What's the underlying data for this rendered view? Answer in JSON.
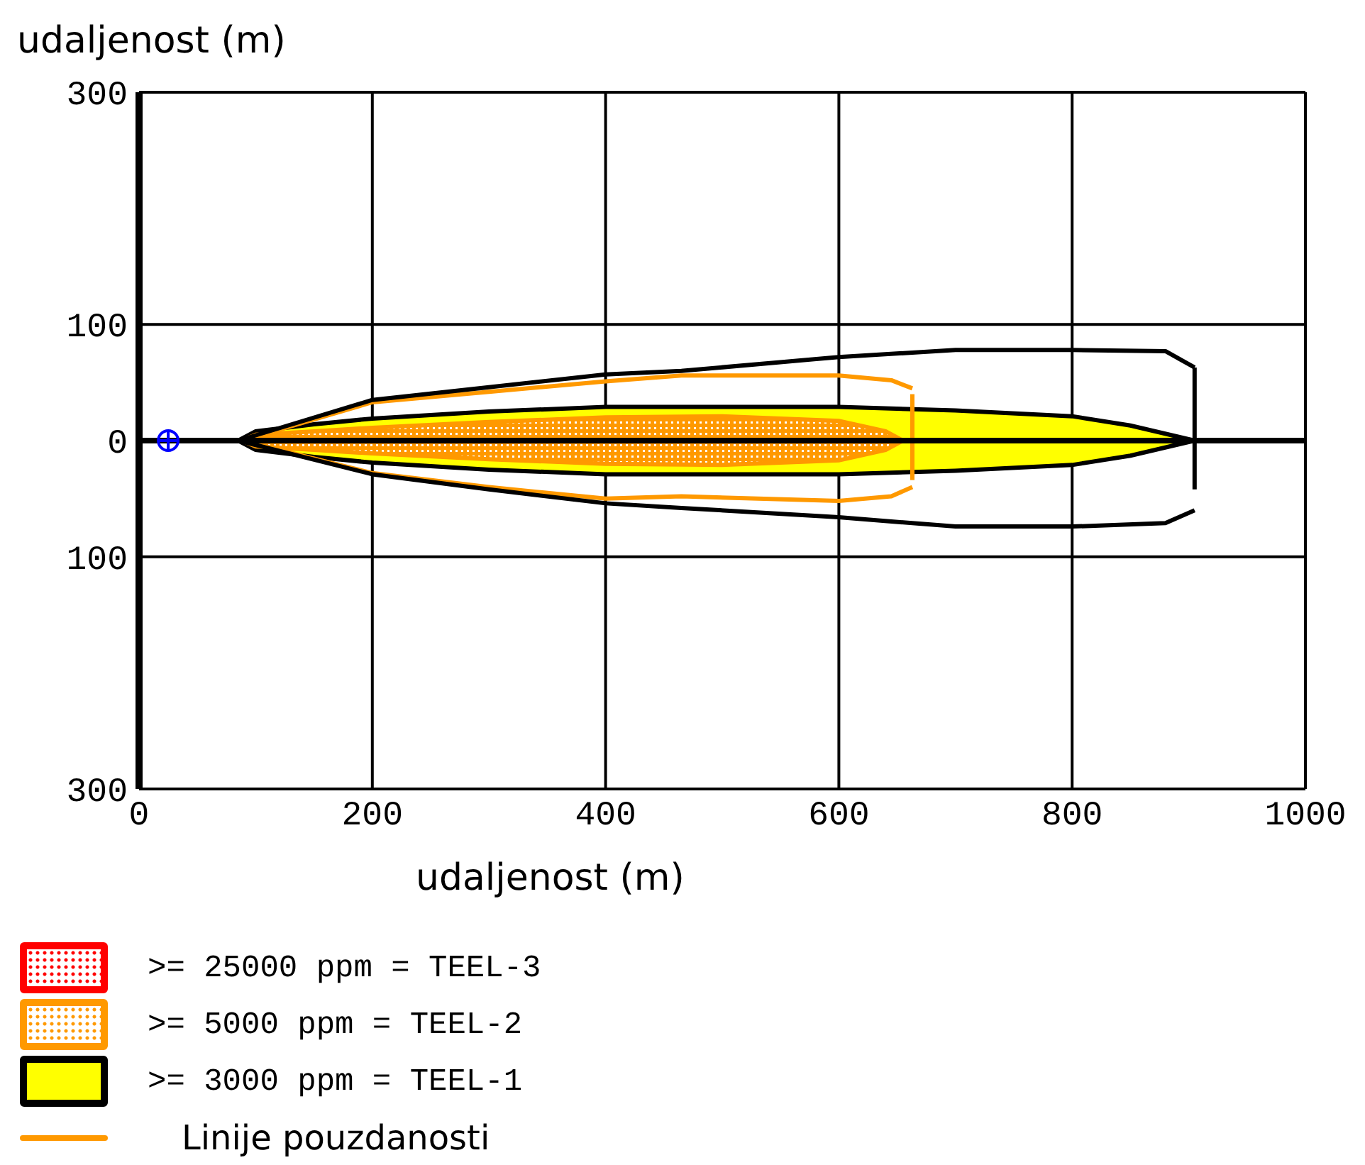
{
  "chart_data": {
    "type": "area",
    "xlabel": "udaljenost (m)",
    "ylabel": "udaljenost (m)",
    "xlim": [
      0,
      1000
    ],
    "xticks": [
      0,
      200,
      400,
      600,
      800,
      1000
    ],
    "ylim": [
      -300,
      300
    ],
    "yticks": [
      {
        "value": -300,
        "label": "300"
      },
      {
        "value": -100,
        "label": "100"
      },
      0,
      100,
      300
    ],
    "grid": true,
    "legend": "bottom left",
    "ref_lines": [
      {
        "axis": "y",
        "value": 0,
        "color": "#000000"
      }
    ],
    "series": [
      {
        "name": ">= 25000 ppm = TEEL-3",
        "color": "#ff0000"
      },
      {
        "name": ">= 5000 ppm = TEEL-2",
        "color": "#ff9900",
        "x": [
          88,
          100,
          150,
          200,
          300,
          400,
          500,
          600,
          640,
          655
        ],
        "values": [
          0,
          5,
          8,
          11,
          16,
          20,
          21,
          17,
          8,
          0
        ]
      },
      {
        "color": "#ff9900",
        "x": [
          88,
          100,
          150,
          200,
          300,
          400,
          500,
          600,
          640,
          655
        ],
        "values": [
          0,
          -5,
          -8,
          -11,
          -16,
          -20,
          -21,
          -17,
          -8,
          0
        ]
      },
      {
        "name": ">= 3000 ppm = TEEL-1",
        "color": "#ffff00",
        "x": [
          85,
          100,
          150,
          200,
          300,
          400,
          500,
          600,
          700,
          800,
          850,
          905
        ],
        "values": [
          0,
          8,
          14,
          19,
          25,
          29,
          29,
          29,
          26,
          21,
          13,
          0
        ]
      },
      {
        "color": "#ffff00",
        "x": [
          85,
          100,
          150,
          200,
          300,
          400,
          500,
          600,
          700,
          800,
          850,
          905
        ],
        "values": [
          0,
          -8,
          -14,
          -19,
          -25,
          -29,
          -29,
          -29,
          -26,
          -21,
          -13,
          0
        ]
      },
      {
        "name": "Linije pouzdanosti",
        "type": "line",
        "color": "#ff9900",
        "x": [
          88,
          200,
          300,
          400,
          465,
          600,
          645,
          663
        ],
        "values": [
          0,
          33,
          42,
          51,
          56,
          56,
          52,
          45
        ]
      },
      {
        "type": "line",
        "color": "#ff9900",
        "x": [
          88,
          200,
          300,
          400,
          465,
          600,
          645,
          663
        ],
        "values": [
          0,
          -28,
          -40,
          -50,
          -48,
          -52,
          -48,
          -40
        ]
      },
      {
        "type": "line",
        "color": "#ff9900",
        "x": [
          663,
          663
        ],
        "values": [
          40,
          -34
        ]
      },
      {
        "type": "line",
        "color": "#000000",
        "x": [
          85,
          200,
          300,
          400,
          465,
          600,
          700,
          800,
          880,
          905
        ],
        "values": [
          0,
          35,
          46,
          57,
          60,
          72,
          78,
          78,
          77,
          63
        ]
      },
      {
        "type": "line",
        "color": "#000000",
        "x": [
          85,
          200,
          300,
          400,
          465,
          600,
          700,
          800,
          880,
          905
        ],
        "values": [
          0,
          -29,
          -42,
          -54,
          -58,
          -66,
          -74,
          -74,
          -71,
          -60
        ]
      },
      {
        "type": "line",
        "color": "#000000",
        "x": [
          905,
          905
        ],
        "values": [
          63,
          -42
        ]
      },
      {
        "type": "scatter",
        "color": "#0000ff",
        "marker": "circle",
        "x": [
          25
        ],
        "values": [
          0
        ]
      }
    ]
  }
}
